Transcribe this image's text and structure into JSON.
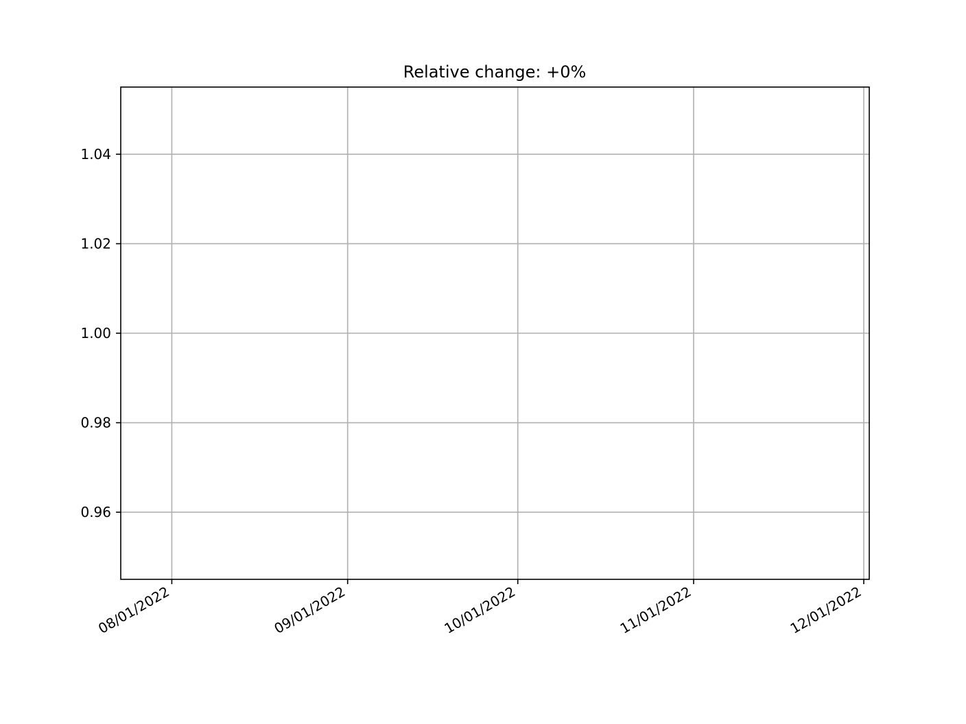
{
  "chart_data": {
    "type": "line",
    "title": "Relative change: +0%",
    "xlabel": "",
    "ylabel": "",
    "x_axis_type": "date",
    "x_date_format": "MM/DD/YYYY",
    "xlim": [
      "2022-07-23",
      "2022-12-01"
    ],
    "ylim": [
      0.945,
      1.055
    ],
    "x_ticks": [
      {
        "date": "2022-08-01",
        "label": "08/01/2022"
      },
      {
        "date": "2022-09-01",
        "label": "09/01/2022"
      },
      {
        "date": "2022-10-01",
        "label": "10/01/2022"
      },
      {
        "date": "2022-11-01",
        "label": "11/01/2022"
      },
      {
        "date": "2022-12-01",
        "label": "12/01/2022"
      }
    ],
    "y_ticks": [
      {
        "value": 0.96,
        "label": "0.96"
      },
      {
        "value": 0.98,
        "label": "0.98"
      },
      {
        "value": 1.0,
        "label": "1.00"
      },
      {
        "value": 1.02,
        "label": "1.02"
      },
      {
        "value": 1.04,
        "label": "1.04"
      }
    ],
    "grid": true,
    "series": [],
    "colors": {
      "grid": "#b0b0b0",
      "axes": "#000000",
      "text": "#000000",
      "background": "#ffffff"
    }
  }
}
